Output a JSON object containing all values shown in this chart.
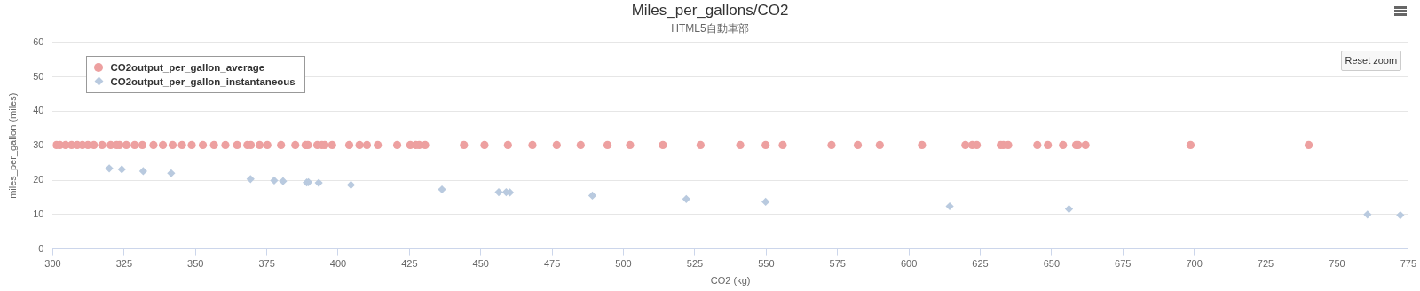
{
  "chart_data": {
    "type": "scatter",
    "title": "Miles_per_gallons/CO2",
    "subtitle": "HTML5自動車部",
    "xlabel": "CO2 (kg)",
    "ylabel": "miles_per_gallon (miles)",
    "xlim": [
      300,
      775
    ],
    "xticks": [
      300,
      325,
      350,
      375,
      400,
      425,
      450,
      475,
      500,
      525,
      550,
      575,
      600,
      625,
      650,
      675,
      700,
      725,
      750,
      775
    ],
    "ylim": [
      0,
      60
    ],
    "yticks": [
      0,
      10,
      20,
      30,
      40,
      50,
      60
    ],
    "grid": "y",
    "legend": "top left",
    "annotations": [
      "Reset zoom"
    ],
    "series": [
      {
        "name": "CO2output_per_gallon_average",
        "color": "#eda0a0",
        "marker": "circle",
        "x": [
          301.3,
          302.5,
          304.5,
          306.6,
          308.6,
          310.4,
          312.3,
          314.4,
          317.3,
          320.3,
          322.4,
          323.4,
          325.8,
          328.7,
          331.4,
          335.3,
          338.6,
          342.0,
          345.3,
          348.7,
          352.6,
          356.5,
          360.5,
          364.6,
          368.2,
          369.4,
          372.5,
          375.2,
          380.0,
          385.0,
          388.6,
          389.4,
          392.7,
          394.3,
          395.3,
          397.9,
          403.9,
          407.5,
          410.1,
          413.9,
          420.7,
          425.3,
          427.2,
          428.4,
          430.5,
          444.1,
          451.3,
          459.5,
          468.1,
          476.6,
          485.0,
          494.4,
          502.3,
          513.8,
          527.0,
          540.9,
          549.8,
          555.8,
          572.9,
          582.1,
          589.8,
          604.6,
          619.8,
          622.2,
          623.8,
          632.2,
          633.1,
          634.8,
          645.0,
          648.7,
          654.0,
          658.6,
          659.3,
          661.9,
          698.7,
          740.1
        ],
        "values": [
          30.2,
          30.2,
          30.2,
          30.2,
          30.2,
          30.2,
          30.2,
          30.2,
          30.2,
          30.2,
          30.2,
          30.2,
          30.2,
          30.2,
          30.2,
          30.2,
          30.2,
          30.2,
          30.2,
          30.2,
          30.2,
          30.2,
          30.2,
          30.2,
          30.2,
          30.2,
          30.2,
          30.2,
          30.2,
          30.2,
          30.2,
          30.2,
          30.2,
          30.2,
          30.2,
          30.2,
          30.2,
          30.2,
          30.2,
          30.2,
          30.2,
          30.2,
          30.2,
          30.2,
          30.2,
          30.2,
          30.2,
          30.2,
          30.2,
          30.2,
          30.2,
          30.2,
          30.2,
          30.2,
          30.2,
          30.2,
          30.2,
          30.2,
          30.2,
          30.2,
          30.2,
          30.2,
          30.2,
          30.2,
          30.2,
          30.2,
          30.2,
          30.2,
          30.2,
          30.2,
          30.2,
          30.2,
          30.2,
          30.2,
          30.2,
          30.2
        ]
      },
      {
        "name": "CO2output_per_gallon_instantaneous",
        "color": "#b9cadf",
        "marker": "diamond",
        "x": [
          319.8,
          324.2,
          331.7,
          341.5,
          369.3,
          377.6,
          380.7,
          389.0,
          389.6,
          393.2,
          404.5,
          436.4,
          456.3,
          458.9,
          460.2,
          489.1,
          522.0,
          549.8,
          614.3,
          656.1,
          760.7,
          772.2
        ],
        "values": [
          23.4,
          23.1,
          22.6,
          22.0,
          20.3,
          19.9,
          19.7,
          19.3,
          19.4,
          19.2,
          18.6,
          17.3,
          16.5,
          16.5,
          16.4,
          15.5,
          14.5,
          13.7,
          12.4,
          11.6,
          10.0,
          9.8
        ]
      }
    ]
  }
}
